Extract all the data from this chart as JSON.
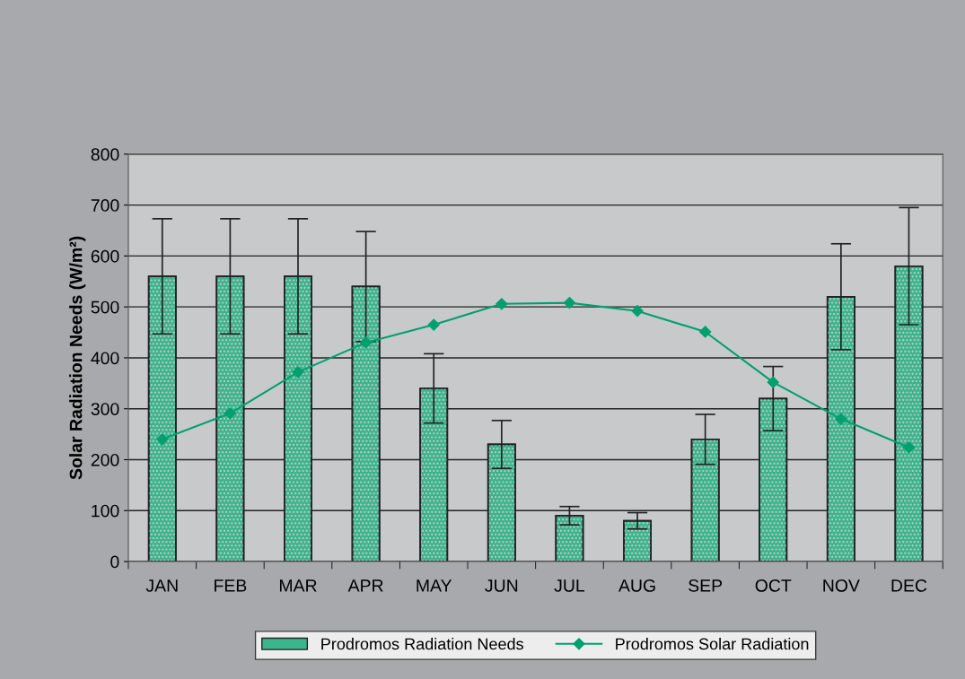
{
  "chart_data": {
    "type": "bar",
    "ylabel": "Solar Radiation Needs (W/m²)",
    "categories": [
      "JAN",
      "FEB",
      "MAR",
      "APR",
      "MAY",
      "JUN",
      "JUL",
      "AUG",
      "SEP",
      "OCT",
      "NOV",
      "DEC"
    ],
    "series": [
      {
        "name": "Prodromos Radiation Needs",
        "color": "#3bb58c",
        "values": [
          560,
          560,
          560,
          540,
          340,
          230,
          90,
          80,
          240,
          320,
          520,
          580
        ],
        "errors": [
          113,
          113,
          113,
          108,
          68,
          47,
          18,
          16,
          49,
          63,
          104,
          115
        ]
      },
      {
        "name": "Prodromos Solar Radiation",
        "type": "line",
        "color": "#00a06e",
        "marker": "diamond",
        "values": [
          240,
          291,
          372,
          430,
          465,
          506,
          508,
          492,
          451,
          352,
          280,
          224
        ]
      }
    ],
    "ylim": [
      0,
      800
    ],
    "yticks": [
      0,
      100,
      200,
      300,
      400,
      500,
      600,
      700,
      800
    ],
    "grid": "y",
    "legend": "bottom"
  }
}
